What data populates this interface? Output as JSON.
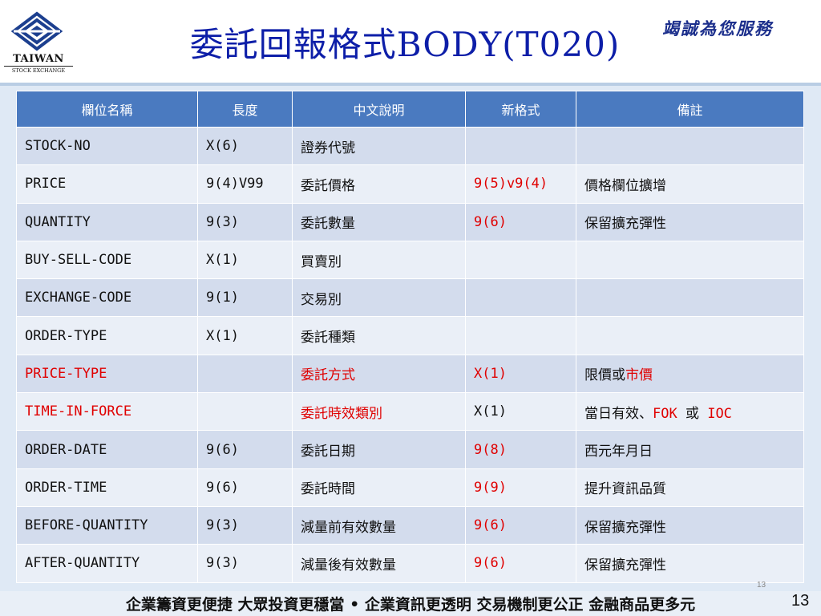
{
  "header": {
    "title": "委託回報格式BODY(T020)",
    "slogan": "竭誠為您服務",
    "logo_name": "TAIWAN",
    "logo_sub": "STOCK EXCHANGE"
  },
  "table": {
    "columns": [
      "欄位名稱",
      "長度",
      "中文說明",
      "新格式",
      "備註"
    ],
    "rows": [
      {
        "name": "STOCK-NO",
        "length": "X(6)",
        "desc": "證券代號",
        "new_format": "",
        "note": ""
      },
      {
        "name": "PRICE",
        "length": "9(4)V99",
        "desc": "委託價格",
        "new_format": "9(5)v9(4)",
        "note": "價格欄位擴增"
      },
      {
        "name": "QUANTITY",
        "length": "9(3)",
        "desc": "委託數量",
        "new_format": "9(6)",
        "note": "保留擴充彈性"
      },
      {
        "name": "BUY-SELL-CODE",
        "length": "X(1)",
        "desc": "買賣別",
        "new_format": "",
        "note": ""
      },
      {
        "name": "EXCHANGE-CODE",
        "length": "9(1)",
        "desc": "交易別",
        "new_format": "",
        "note": ""
      },
      {
        "name": "ORDER-TYPE",
        "length": "X(1)",
        "desc": "委託種類",
        "new_format": "",
        "note": ""
      },
      {
        "name": "PRICE-TYPE",
        "length": "",
        "desc": "委託方式",
        "new_format": "X(1)",
        "note_a": "限價或",
        "note_b": "市價"
      },
      {
        "name": "TIME-IN-FORCE",
        "length": "",
        "desc": "委託時效類別",
        "new_format": "X(1)",
        "note_a": "當日有效、",
        "note_b": "FOK",
        "note_c": " 或 ",
        "note_d": "IOC"
      },
      {
        "name": "ORDER-DATE",
        "length": "9(6)",
        "desc": "委託日期",
        "new_format": "9(8)",
        "note": "西元年月日"
      },
      {
        "name": "ORDER-TIME",
        "length": "9(6)",
        "desc": "委託時間",
        "new_format": "9(9)",
        "note": "提升資訊品質"
      },
      {
        "name": "BEFORE-QUANTITY",
        "length": "9(3)",
        "desc": "減量前有效數量",
        "new_format": "9(6)",
        "note": "保留擴充彈性"
      },
      {
        "name": "AFTER-QUANTITY",
        "length": "9(3)",
        "desc": "減量後有效數量",
        "new_format": "9(6)",
        "note": "保留擴充彈性"
      }
    ]
  },
  "footer": {
    "text": "企業籌資更便捷 大眾投資更穩當 • 企業資訊更透明 交易機制更公正 金融商品更多元",
    "page_small": "13",
    "page_number": "13"
  },
  "colors": {
    "title": "#0d1ea8",
    "header_row": "#4a7ac0",
    "row_dark": "#d3dced",
    "row_light": "#eaeff7",
    "highlight_red": "#e00000"
  }
}
